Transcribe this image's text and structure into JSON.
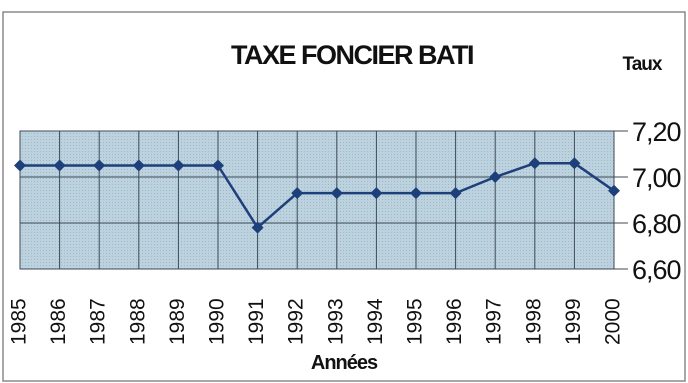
{
  "chart_data": {
    "type": "line",
    "title": "TAXE FONCIER BATI",
    "xlabel": "Années",
    "ylabel": "Taux",
    "categories": [
      "1985",
      "1986",
      "1987",
      "1988",
      "1989",
      "1990",
      "1991",
      "1992",
      "1993",
      "1994",
      "1995",
      "1996",
      "1997",
      "1998",
      "1999",
      "2000"
    ],
    "series": [
      {
        "values": [
          7.05,
          7.05,
          7.05,
          7.05,
          7.05,
          7.05,
          6.78,
          6.93,
          6.93,
          6.93,
          6.93,
          6.93,
          7.0,
          7.06,
          7.06,
          6.94
        ]
      }
    ],
    "ylim": [
      6.6,
      7.2
    ],
    "yticks": [
      "6,60",
      "6,80",
      "7,00",
      "7,20"
    ],
    "ytick_values": [
      6.6,
      6.8,
      7.0,
      7.2
    ],
    "grid": true,
    "colors": {
      "plot_area": "#bcd2df",
      "line": "#1d3f7a",
      "marker": "#1d3f7a",
      "grid": "#3b4a56",
      "frame": "#8a8a8a"
    }
  }
}
